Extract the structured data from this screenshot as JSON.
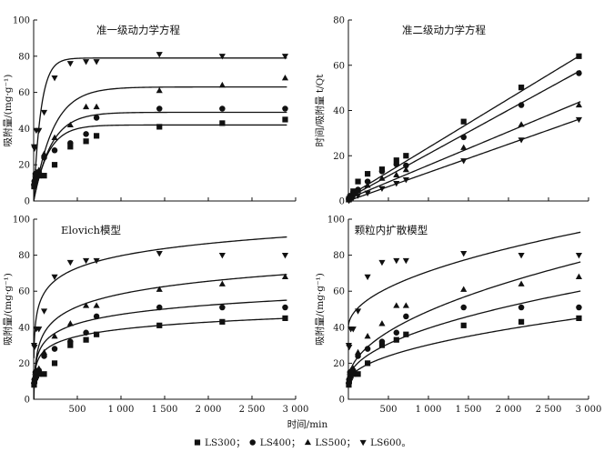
{
  "chart_data": [
    {
      "id": "p1",
      "type": "scatter",
      "title": "准一级动力学方程",
      "ylabel": "吸附量/(mg·g⁻¹)",
      "xlim": [
        0,
        3000
      ],
      "ylim": [
        0,
        100
      ],
      "yticks": [
        "0",
        "20",
        "40",
        "60",
        "80",
        "100"
      ],
      "fit": "pfo",
      "series": [
        {
          "name": "LS300",
          "marker": "square",
          "x": [
            5,
            10,
            20,
            30,
            60,
            120,
            240,
            420,
            600,
            720,
            1440,
            2160,
            2880
          ],
          "y": [
            8,
            10,
            12,
            13,
            14,
            14,
            20,
            30,
            33,
            36,
            41,
            43,
            45
          ],
          "fit_params": [
            42,
            0.006
          ]
        },
        {
          "name": "LS400",
          "marker": "circle",
          "x": [
            5,
            10,
            20,
            30,
            60,
            120,
            240,
            420,
            600,
            720,
            1440,
            2160,
            2880
          ],
          "y": [
            9,
            11,
            15,
            15,
            16,
            24,
            28,
            32,
            37,
            46,
            51,
            51,
            51
          ],
          "fit_params": [
            49,
            0.005
          ]
        },
        {
          "name": "LS500",
          "marker": "triangle",
          "x": [
            5,
            10,
            20,
            30,
            60,
            120,
            240,
            420,
            600,
            720,
            1440,
            2160,
            2880
          ],
          "y": [
            10,
            12,
            15,
            16,
            17,
            26,
            35,
            42,
            52,
            52,
            61,
            64,
            68
          ],
          "fit_params": [
            63,
            0.0045
          ]
        },
        {
          "name": "LS600",
          "marker": "triangle-down",
          "x": [
            5,
            10,
            30,
            60,
            120,
            240,
            420,
            600,
            720,
            1440,
            2160,
            2880
          ],
          "y": [
            30,
            29,
            39,
            39,
            49,
            68,
            76,
            77,
            77,
            81,
            80,
            80
          ],
          "fit_params": [
            79,
            0.012
          ]
        }
      ]
    },
    {
      "id": "p2",
      "type": "scatter",
      "title": "准二级动力学方程",
      "ylabel": "时间/吸附量 t/Qt",
      "xlim": [
        0,
        3000
      ],
      "ylim": [
        0,
        80
      ],
      "yticks": [
        "0",
        "20",
        "40",
        "60",
        "80"
      ],
      "fit": "linear",
      "series": [
        {
          "name": "LS300",
          "marker": "square",
          "x": [
            5,
            10,
            20,
            30,
            60,
            120,
            240,
            420,
            600,
            720,
            1440,
            2160,
            2880
          ],
          "y": [
            0.7,
            1.0,
            1.8,
            2.3,
            4.3,
            8.6,
            12.0,
            14.0,
            18.0,
            20.0,
            35.1,
            50.2,
            64.0
          ],
          "fit_params": [
            0.0215,
            2.1
          ]
        },
        {
          "name": "LS400",
          "marker": "circle",
          "x": [
            5,
            10,
            20,
            30,
            60,
            120,
            240,
            420,
            600,
            720,
            1440,
            2160,
            2880
          ],
          "y": [
            0.6,
            0.9,
            1.3,
            2.0,
            3.8,
            5.0,
            8.6,
            13.1,
            16.2,
            15.7,
            28.2,
            42.4,
            56.5
          ],
          "fit_params": [
            0.0194,
            1.4
          ]
        },
        {
          "name": "LS500",
          "marker": "triangle",
          "x": [
            5,
            10,
            20,
            30,
            60,
            120,
            240,
            420,
            600,
            720,
            1440,
            2160,
            2880
          ],
          "y": [
            0.5,
            0.8,
            1.3,
            1.9,
            3.5,
            4.6,
            6.9,
            10.0,
            11.5,
            13.8,
            23.6,
            33.8,
            42.4
          ],
          "fit_params": [
            0.0148,
            1.0
          ]
        },
        {
          "name": "LS600",
          "marker": "triangle-down",
          "x": [
            5,
            10,
            30,
            60,
            120,
            240,
            420,
            600,
            720,
            1440,
            2160,
            2880
          ],
          "y": [
            0.2,
            0.3,
            0.8,
            1.5,
            2.4,
            3.5,
            5.5,
            7.8,
            9.4,
            17.8,
            27.0,
            36.0
          ],
          "fit_params": [
            0.0125,
            0.1
          ]
        }
      ]
    },
    {
      "id": "p3",
      "type": "scatter",
      "title": "Elovich模型",
      "ylabel": "吸附量/(mg·g⁻¹)",
      "xlim": [
        0,
        3000
      ],
      "ylim": [
        0,
        100
      ],
      "yticks": [
        "0",
        "20",
        "40",
        "60",
        "80",
        "100"
      ],
      "fit": "elovich",
      "series": [
        {
          "name": "LS300",
          "marker": "square",
          "x": [
            5,
            10,
            20,
            30,
            60,
            120,
            240,
            420,
            600,
            720,
            1440,
            2160,
            2880
          ],
          "y": [
            8,
            10,
            12,
            13,
            14,
            14,
            20,
            30,
            33,
            36,
            41,
            43,
            45
          ],
          "fit_params": [
            -0.5,
            5.7
          ]
        },
        {
          "name": "LS400",
          "marker": "circle",
          "x": [
            5,
            10,
            20,
            30,
            60,
            120,
            240,
            420,
            600,
            720,
            1440,
            2160,
            2880
          ],
          "y": [
            9,
            11,
            15,
            15,
            16,
            24,
            28,
            32,
            37,
            46,
            51,
            51,
            51
          ],
          "fit_params": [
            -4.0,
            7.4
          ]
        },
        {
          "name": "LS500",
          "marker": "triangle",
          "x": [
            5,
            10,
            20,
            30,
            60,
            120,
            240,
            420,
            600,
            720,
            1440,
            2160,
            2880
          ],
          "y": [
            10,
            12,
            15,
            16,
            17,
            26,
            35,
            42,
            52,
            52,
            61,
            64,
            68
          ],
          "fit_params": [
            -12.0,
            10.2
          ]
        },
        {
          "name": "LS600",
          "marker": "triangle-down",
          "x": [
            5,
            10,
            30,
            60,
            120,
            240,
            420,
            600,
            720,
            1440,
            2160,
            2880
          ],
          "y": [
            30,
            29,
            39,
            39,
            49,
            68,
            76,
            77,
            77,
            81,
            80,
            80
          ],
          "fit_params": [
            12.0,
            9.8
          ]
        }
      ]
    },
    {
      "id": "p4",
      "type": "scatter",
      "title": "颗粒内扩散模型",
      "ylabel": "吸附量/(mg·g⁻¹)",
      "xlim": [
        0,
        3000
      ],
      "ylim": [
        0,
        100
      ],
      "yticks": [
        "0",
        "20",
        "40",
        "60",
        "80",
        "100"
      ],
      "fit": "sqrt",
      "series": [
        {
          "name": "LS300",
          "marker": "square",
          "x": [
            5,
            10,
            20,
            30,
            60,
            120,
            240,
            420,
            600,
            720,
            1440,
            2160,
            2880
          ],
          "y": [
            8,
            10,
            12,
            13,
            14,
            14,
            20,
            30,
            33,
            36,
            41,
            43,
            45
          ],
          "fit_params": [
            9.0,
            0.67
          ]
        },
        {
          "name": "LS400",
          "marker": "circle",
          "x": [
            5,
            10,
            20,
            30,
            60,
            120,
            240,
            420,
            600,
            720,
            1440,
            2160,
            2880
          ],
          "y": [
            9,
            11,
            15,
            15,
            16,
            24,
            28,
            32,
            37,
            46,
            51,
            51,
            51
          ],
          "fit_params": [
            10.0,
            0.93
          ]
        },
        {
          "name": "LS500",
          "marker": "triangle",
          "x": [
            5,
            10,
            20,
            30,
            60,
            120,
            240,
            420,
            600,
            720,
            1440,
            2160,
            2880
          ],
          "y": [
            10,
            12,
            15,
            16,
            17,
            26,
            35,
            42,
            52,
            52,
            61,
            64,
            68
          ],
          "fit_params": [
            10.0,
            1.23
          ]
        },
        {
          "name": "LS600",
          "marker": "triangle-down",
          "x": [
            5,
            10,
            30,
            60,
            120,
            240,
            420,
            600,
            720,
            1440,
            2160,
            2880
          ],
          "y": [
            30,
            29,
            39,
            39,
            49,
            68,
            76,
            77,
            77,
            81,
            80,
            80
          ],
          "fit_params": [
            40.0,
            0.98
          ]
        }
      ]
    }
  ],
  "shared": {
    "xlabel": "时间/min",
    "xticks": [
      "500",
      "1 000",
      "1 500",
      "2 000",
      "2 500",
      "3 000"
    ],
    "xtick_values": [
      500,
      1000,
      1500,
      2000,
      2500,
      3000
    ],
    "legend": [
      {
        "marker": "square",
        "label": "LS300；"
      },
      {
        "marker": "circle",
        "label": "LS400；"
      },
      {
        "marker": "triangle",
        "label": "LS500；"
      },
      {
        "marker": "triangle-down",
        "label": "LS600。"
      }
    ]
  }
}
